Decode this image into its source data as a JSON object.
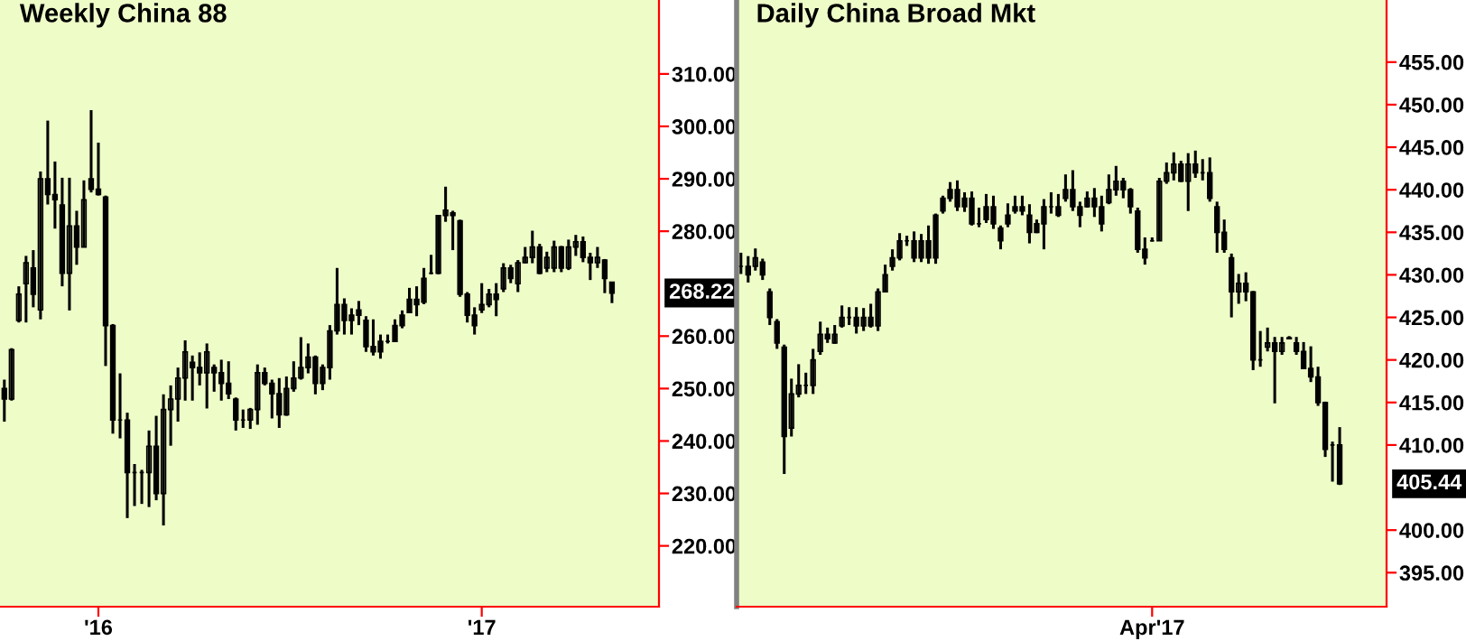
{
  "chart_data": [
    {
      "type": "candlestick",
      "title": "Weekly China 88",
      "color": "#000000",
      "categories": [
        null,
        null,
        null,
        null,
        null,
        null,
        null,
        null,
        null,
        null,
        null,
        null,
        null,
        "'16",
        null,
        null,
        null,
        null,
        null,
        null,
        null,
        null,
        null,
        null,
        null,
        null,
        null,
        null,
        null,
        null,
        null,
        null,
        null,
        null,
        null,
        null,
        null,
        null,
        null,
        null,
        null,
        null,
        null,
        null,
        null,
        null,
        null,
        null,
        null,
        null,
        null,
        null,
        null,
        null,
        null,
        null,
        null,
        null,
        null,
        null,
        null,
        null,
        null,
        null,
        null,
        null,
        "'17",
        null,
        null,
        null,
        null,
        null,
        null,
        null,
        null,
        null,
        null,
        null,
        null,
        null,
        null,
        null,
        null,
        null,
        null
      ],
      "ohlc": [
        [
          250,
          251.7,
          243.7,
          248
        ],
        [
          248,
          257.7,
          247.7,
          257.4
        ],
        [
          263,
          269.5,
          262.6,
          268
        ],
        [
          270,
          275.3,
          262.6,
          274
        ],
        [
          273,
          276.4,
          265.5,
          268
        ],
        [
          265,
          291.4,
          263.2,
          290
        ],
        [
          290,
          301.1,
          285.1,
          287
        ],
        [
          287,
          293.3,
          280.5,
          286
        ],
        [
          285,
          290.2,
          269.5,
          272
        ],
        [
          272,
          290.2,
          264.9,
          281
        ],
        [
          281,
          283.9,
          273.6,
          277
        ],
        [
          277,
          289.7,
          277,
          286
        ],
        [
          290,
          303.1,
          287.4,
          288
        ],
        [
          288,
          296.9,
          286.8,
          287
        ],
        [
          286.5,
          286.8,
          254.3,
          262
        ],
        [
          262,
          262.3,
          241.4,
          244
        ],
        [
          244,
          252.9,
          240.5,
          244
        ],
        [
          244,
          245.4,
          225.3,
          234
        ],
        [
          234,
          235.6,
          227.6,
          234
        ],
        [
          234,
          234.5,
          228,
          234
        ],
        [
          234,
          242,
          227.4,
          239
        ],
        [
          239,
          244.8,
          228.7,
          230
        ],
        [
          230,
          248.9,
          223.9,
          246
        ],
        [
          246,
          250.6,
          239.1,
          248
        ],
        [
          248,
          254,
          243.7,
          252
        ],
        [
          252,
          259.2,
          247.7,
          257
        ],
        [
          255,
          256.3,
          247.7,
          254
        ],
        [
          254,
          256.9,
          250.6,
          253
        ],
        [
          253,
          258.6,
          246.2,
          257
        ],
        [
          254,
          254.6,
          249.4,
          253
        ],
        [
          253,
          255.5,
          247.7,
          251
        ],
        [
          251,
          255.2,
          248,
          249
        ],
        [
          248,
          248.3,
          242,
          244
        ],
        [
          244,
          246,
          242.5,
          244
        ],
        [
          244,
          246.3,
          242.3,
          246
        ],
        [
          246,
          254.6,
          243.1,
          253
        ],
        [
          253,
          254,
          250.6,
          251
        ],
        [
          251,
          251.7,
          244.3,
          249
        ],
        [
          249,
          252,
          242.5,
          245
        ],
        [
          245,
          252.3,
          244.8,
          250
        ],
        [
          250,
          255.2,
          249.4,
          252
        ],
        [
          252,
          259.8,
          251.7,
          254
        ],
        [
          254,
          258.6,
          252.9,
          256
        ],
        [
          256,
          256.3,
          248.9,
          251
        ],
        [
          251,
          254.6,
          249.7,
          254
        ],
        [
          254,
          262.1,
          251.7,
          261
        ],
        [
          261,
          273,
          260.3,
          266
        ],
        [
          266,
          267.2,
          260.3,
          263
        ],
        [
          263,
          265.3,
          260.3,
          264
        ],
        [
          264,
          266.7,
          262.1,
          265
        ],
        [
          263,
          263.8,
          257,
          258
        ],
        [
          258,
          263.2,
          256.3,
          257
        ],
        [
          257,
          260.3,
          255.7,
          259
        ],
        [
          259,
          260.3,
          258.6,
          259
        ],
        [
          259,
          263.2,
          258.9,
          262
        ],
        [
          262,
          264.9,
          261.5,
          264
        ],
        [
          264.5,
          269.2,
          264.4,
          267
        ],
        [
          267,
          269.5,
          263.8,
          266
        ],
        [
          266.5,
          273,
          266.1,
          271
        ],
        [
          272,
          275.5,
          271.8,
          272
        ],
        [
          272,
          283.1,
          271.8,
          283
        ],
        [
          283,
          288.5,
          281.8,
          284
        ],
        [
          283.5,
          283.9,
          276.4,
          283
        ],
        [
          282,
          282.2,
          267.5,
          268
        ],
        [
          268,
          268.4,
          262.6,
          264
        ],
        [
          264,
          265.5,
          260.3,
          262
        ],
        [
          265,
          270.1,
          264.4,
          266
        ],
        [
          266,
          269,
          265.5,
          268
        ],
        [
          268,
          270.1,
          263.8,
          267
        ],
        [
          269,
          273.9,
          268.4,
          273
        ],
        [
          273,
          273.6,
          270.1,
          271
        ],
        [
          270,
          274.5,
          268.4,
          274
        ],
        [
          274,
          277,
          273.9,
          275
        ],
        [
          275,
          280.1,
          273.9,
          277
        ],
        [
          277,
          277.6,
          271.8,
          272
        ],
        [
          273,
          276.1,
          272.2,
          275
        ],
        [
          273,
          278.2,
          272.2,
          277
        ],
        [
          277,
          277.2,
          272.2,
          273
        ],
        [
          273,
          278.4,
          272.6,
          277
        ],
        [
          277,
          279.3,
          275.3,
          278
        ],
        [
          278,
          279,
          274.1,
          275
        ],
        [
          275,
          275.9,
          270.7,
          274
        ],
        [
          274,
          277,
          273,
          275
        ],
        [
          274.5,
          274.7,
          268.2,
          271
        ],
        [
          270.3,
          270.3,
          266.3,
          268.22
        ]
      ],
      "ylim": [
        208.4,
        324.1
      ],
      "yticks": [
        {
          "value": 220,
          "label": "220.00"
        },
        {
          "value": 230,
          "label": "230.00"
        },
        {
          "value": 240,
          "label": "240.00"
        },
        {
          "value": 250,
          "label": "250.00"
        },
        {
          "value": 260,
          "label": "260.00"
        },
        {
          "value": 280,
          "label": "280.00"
        },
        {
          "value": 290,
          "label": "290.00"
        },
        {
          "value": 300,
          "label": "300.00"
        },
        {
          "value": 310,
          "label": "310.00"
        }
      ],
      "annotations": [
        "268.22"
      ]
    },
    {
      "type": "candlestick",
      "title": "Daily China Broad Mkt",
      "color": "#000000",
      "categories": [
        null,
        null,
        null,
        null,
        null,
        null,
        null,
        null,
        null,
        null,
        null,
        null,
        null,
        null,
        null,
        null,
        null,
        null,
        null,
        null,
        null,
        null,
        null,
        null,
        null,
        null,
        null,
        null,
        null,
        null,
        null,
        null,
        null,
        null,
        null,
        null,
        null,
        null,
        null,
        null,
        null,
        null,
        null,
        null,
        null,
        null,
        null,
        null,
        null,
        null,
        null,
        null,
        null,
        null,
        null,
        null,
        null,
        "Apr'17",
        null,
        null,
        null,
        null,
        null,
        null,
        null,
        null,
        null,
        null,
        null,
        null,
        null,
        null,
        null,
        null,
        null,
        null,
        null,
        null,
        null,
        null,
        null,
        null,
        null,
        null
      ],
      "ohlc": [
        [
          431,
          432.6,
          430.1,
          431
        ],
        [
          431,
          432.2,
          429.1,
          430
        ],
        [
          431,
          433.1,
          430.5,
          432
        ],
        [
          431.5,
          431.9,
          429.4,
          430
        ],
        [
          428,
          428.4,
          424.1,
          425
        ],
        [
          424.5,
          424.8,
          421.3,
          422
        ],
        [
          421.5,
          421.8,
          406.6,
          411
        ],
        [
          412,
          417.8,
          411,
          416
        ],
        [
          416,
          419.5,
          415.6,
          417
        ],
        [
          417,
          418.5,
          416,
          417
        ],
        [
          417,
          421.3,
          416,
          420
        ],
        [
          421,
          424.5,
          420.6,
          423
        ],
        [
          423,
          423.8,
          422,
          422.5
        ],
        [
          422,
          424.1,
          421.9,
          423
        ],
        [
          424,
          426.4,
          423.8,
          425
        ],
        [
          425,
          426.2,
          424.1,
          425
        ],
        [
          425,
          426.2,
          423.1,
          424
        ],
        [
          424,
          426.1,
          423.4,
          425
        ],
        [
          425,
          426.6,
          423.8,
          424
        ],
        [
          424,
          428.4,
          423.4,
          428
        ],
        [
          428,
          431.2,
          428,
          430
        ],
        [
          431,
          433,
          430.5,
          432
        ],
        [
          432,
          434.9,
          431.7,
          434
        ],
        [
          434,
          434.6,
          433.4,
          434
        ],
        [
          434,
          435.1,
          431.5,
          432
        ],
        [
          432,
          434.8,
          431.5,
          434
        ],
        [
          434,
          435.8,
          431.3,
          432
        ],
        [
          432,
          437.2,
          431.3,
          437
        ],
        [
          437.5,
          439.3,
          437.2,
          439
        ],
        [
          439,
          440.9,
          438.6,
          440
        ],
        [
          440,
          441.1,
          437.5,
          438
        ],
        [
          438,
          439.7,
          437.4,
          439
        ],
        [
          439,
          439.8,
          435.8,
          436
        ],
        [
          436,
          437.9,
          435.6,
          436
        ],
        [
          436.5,
          439.5,
          436.1,
          438
        ],
        [
          438,
          439.3,
          435.4,
          436
        ],
        [
          435.5,
          435.8,
          433,
          434
        ],
        [
          436,
          438.4,
          435.6,
          437
        ],
        [
          437.5,
          439.3,
          437.2,
          438
        ],
        [
          438,
          439.3,
          437,
          437.5
        ],
        [
          437,
          438.3,
          433.7,
          435
        ],
        [
          435,
          436.5,
          434.9,
          436
        ],
        [
          436,
          438.9,
          433,
          438
        ],
        [
          438,
          439.7,
          437.2,
          438
        ],
        [
          438,
          439.5,
          436.8,
          437
        ],
        [
          439,
          441.8,
          438.6,
          440
        ],
        [
          440,
          442.3,
          437.5,
          438
        ],
        [
          438,
          438.6,
          435.6,
          437
        ],
        [
          438,
          439.8,
          437.9,
          439
        ],
        [
          439,
          440.2,
          436.8,
          438
        ],
        [
          438,
          439.3,
          435.1,
          436
        ],
        [
          438.5,
          441.8,
          438.3,
          440
        ],
        [
          440,
          442.8,
          439.3,
          441
        ],
        [
          441,
          441.4,
          439,
          440
        ],
        [
          440,
          440.2,
          437.2,
          438
        ],
        [
          437.5,
          437.9,
          432.6,
          433
        ],
        [
          433,
          434.4,
          431.2,
          432
        ],
        [
          434,
          434.4,
          433.9,
          434
        ],
        [
          434,
          441.4,
          434,
          441
        ],
        [
          441,
          443.2,
          440.7,
          442
        ],
        [
          442,
          444.4,
          441.1,
          443
        ],
        [
          443,
          443.4,
          440.9,
          441
        ],
        [
          441,
          444.3,
          437.5,
          443
        ],
        [
          443,
          444.6,
          441.4,
          442
        ],
        [
          442,
          443.6,
          441.1,
          442
        ],
        [
          442,
          443.8,
          438.6,
          439
        ],
        [
          438,
          438.6,
          432.6,
          435
        ],
        [
          435,
          436.5,
          432.6,
          433
        ],
        [
          432,
          432.5,
          425,
          428
        ],
        [
          428,
          430.1,
          426.6,
          429
        ],
        [
          429,
          430.3,
          426.9,
          428
        ],
        [
          428,
          428.1,
          418.8,
          420
        ],
        [
          420,
          423.4,
          419.2,
          420
        ],
        [
          421.5,
          423.8,
          421,
          422
        ],
        [
          422,
          422.7,
          414.9,
          421
        ],
        [
          421,
          422.7,
          420.6,
          422
        ],
        [
          422.5,
          422.8,
          422.5,
          422.6
        ],
        [
          422,
          422.7,
          420.6,
          421
        ],
        [
          421,
          422.1,
          419,
          419
        ],
        [
          419,
          421.6,
          417.4,
          418
        ],
        [
          418,
          419.2,
          414.6,
          415
        ],
        [
          415,
          415.1,
          408.6,
          409.5
        ],
        [
          410,
          410.4,
          405.7,
          410
        ],
        [
          410,
          412.1,
          405.3,
          405.44
        ]
      ],
      "ylim": [
        391.0,
        462.3
      ],
      "yticks": [
        {
          "value": 395,
          "label": "395.00"
        },
        {
          "value": 400,
          "label": "400.00"
        },
        {
          "value": 410,
          "label": "410.00"
        },
        {
          "value": 415,
          "label": "415.00"
        },
        {
          "value": 420,
          "label": "420.00"
        },
        {
          "value": 425,
          "label": "425.00"
        },
        {
          "value": 430,
          "label": "430.00"
        },
        {
          "value": 435,
          "label": "435.00"
        },
        {
          "value": 440,
          "label": "440.00"
        },
        {
          "value": 445,
          "label": "445.00"
        },
        {
          "value": 450,
          "label": "450.00"
        },
        {
          "value": 455,
          "label": "455.00"
        }
      ],
      "annotations": [
        "405.44"
      ]
    }
  ]
}
